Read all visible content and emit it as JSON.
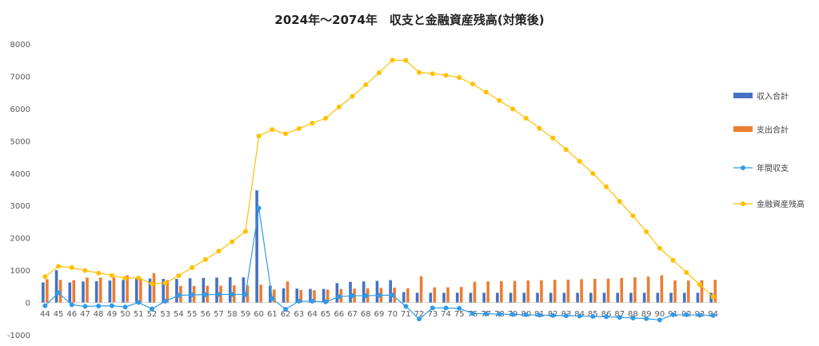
{
  "chart_data": {
    "type": "bar",
    "title": "2024年～2074年　収支と金融資産残高(対策後)",
    "xlabel": "",
    "ylabel": "",
    "ylim": [
      -1000,
      8000
    ],
    "yticks": [
      -1000,
      0,
      1000,
      2000,
      3000,
      4000,
      5000,
      6000,
      7000,
      8000
    ],
    "grid": false,
    "legend_position": "right",
    "categories": [
      "44",
      "45",
      "46",
      "47",
      "48",
      "49",
      "50",
      "51",
      "52",
      "53",
      "54",
      "55",
      "56",
      "57",
      "58",
      "59",
      "60",
      "61",
      "62",
      "63",
      "64",
      "65",
      "66",
      "67",
      "68",
      "69",
      "70",
      "71",
      "72",
      "73",
      "74",
      "75",
      "76",
      "77",
      "78",
      "79",
      "80",
      "81",
      "82",
      "83",
      "84",
      "85",
      "86",
      "87",
      "88",
      "89",
      "90",
      "91",
      "92",
      "93",
      "94"
    ],
    "series": [
      {
        "name": "収入合計",
        "type": "bar",
        "color": "#4472C4",
        "values": [
          620,
          1000,
          620,
          650,
          660,
          680,
          700,
          740,
          740,
          730,
          730,
          750,
          760,
          770,
          780,
          780,
          3470,
          520,
          440,
          430,
          420,
          420,
          600,
          640,
          650,
          670,
          690,
          320,
          300,
          300,
          300,
          300,
          300,
          300,
          300,
          300,
          300,
          300,
          300,
          300,
          300,
          300,
          300,
          300,
          300,
          300,
          300,
          300,
          300,
          300,
          300
        ]
      },
      {
        "name": "支出合計",
        "type": "bar",
        "color": "#ED7D31",
        "values": [
          720,
          700,
          690,
          770,
          770,
          780,
          840,
          740,
          910,
          690,
          510,
          510,
          520,
          520,
          530,
          530,
          550,
          400,
          650,
          390,
          380,
          400,
          420,
          430,
          440,
          450,
          460,
          440,
          810,
          470,
          470,
          480,
          640,
          650,
          660,
          670,
          680,
          690,
          700,
          710,
          720,
          730,
          740,
          760,
          780,
          800,
          840,
          680,
          680,
          690,
          700
        ]
      },
      {
        "name": "年間収支",
        "type": "line",
        "color": "#2F9BEA",
        "values": [
          -100,
          300,
          -70,
          -120,
          -110,
          -100,
          -140,
          0,
          -200,
          40,
          220,
          240,
          240,
          250,
          250,
          250,
          2920,
          120,
          -210,
          40,
          40,
          20,
          180,
          210,
          210,
          220,
          230,
          -120,
          -510,
          -170,
          -170,
          -180,
          -340,
          -350,
          -360,
          -370,
          -380,
          -390,
          -400,
          -410,
          -420,
          -430,
          -440,
          -460,
          -480,
          -500,
          -540,
          -380,
          -380,
          -390,
          -400
        ]
      },
      {
        "name": "金融資産残高",
        "type": "line",
        "color": "#FFC000",
        "values": [
          800,
          1120,
          1080,
          990,
          910,
          840,
          750,
          760,
          580,
          600,
          830,
          1080,
          1330,
          1590,
          1880,
          2200,
          5150,
          5350,
          5220,
          5380,
          5550,
          5700,
          6050,
          6380,
          6740,
          7110,
          7500,
          7490,
          7120,
          7080,
          7030,
          6960,
          6760,
          6510,
          6250,
          5990,
          5700,
          5390,
          5090,
          4730,
          4370,
          3990,
          3580,
          3130,
          2680,
          2190,
          1680,
          1310,
          930,
          550,
          170
        ]
      }
    ]
  }
}
